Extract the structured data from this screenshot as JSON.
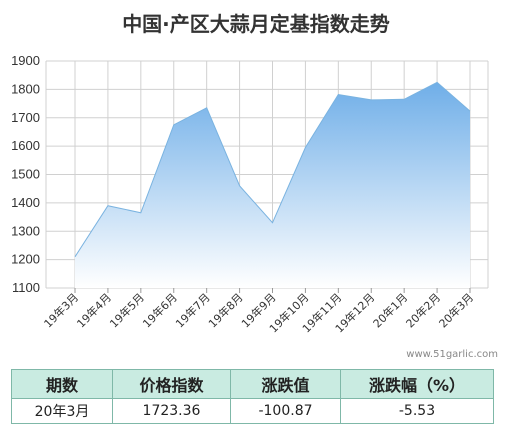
{
  "chart_data": {
    "type": "area",
    "title": "中国·产区大蒜月定基指数走势",
    "categories": [
      "19年3月",
      "19年4月",
      "19年5月",
      "19年6月",
      "19年7月",
      "19年8月",
      "19年9月",
      "19年10月",
      "19年11月",
      "19年12月",
      "20年1月",
      "20年2月",
      "20年3月"
    ],
    "series": [
      {
        "values": [
          1210,
          1390,
          1365,
          1675,
          1735,
          1460,
          1330,
          1595,
          1782,
          1763,
          1765,
          1825,
          1723.36
        ]
      }
    ],
    "yticks": [
      "1900",
      "1800",
      "1700",
      "1600",
      "1500",
      "1400",
      "1300",
      "1200",
      "1100"
    ],
    "ylim": [
      1100,
      1900
    ],
    "grid": true,
    "colors": {
      "fill_top": "#6faee8",
      "fill_bottom": "#ffffff",
      "line": "#7ab3e0",
      "grid": "#d0d0d0"
    }
  },
  "watermark": "www.51garlic.com",
  "table": {
    "headers": [
      "期数",
      "价格指数",
      "涨跌值",
      "涨跌幅（%）"
    ],
    "row": [
      "20年3月",
      "1723.36",
      "-100.87",
      "-5.53"
    ]
  }
}
